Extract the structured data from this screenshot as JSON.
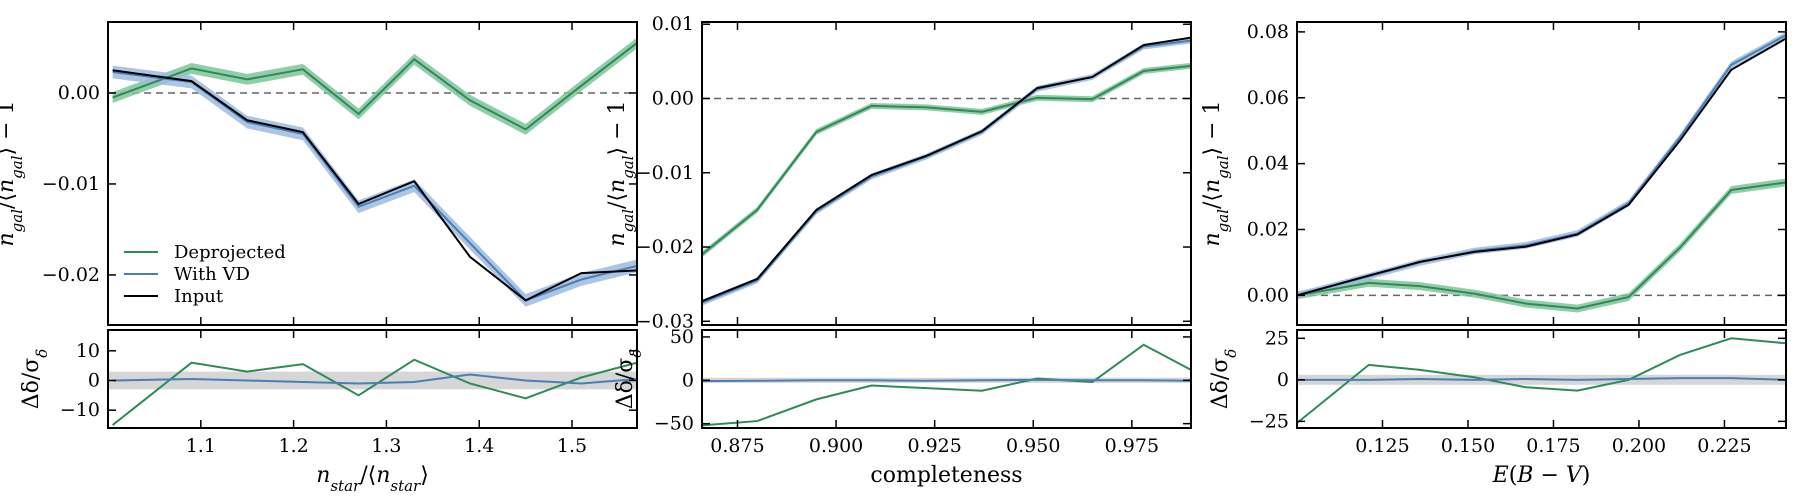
{
  "colors": {
    "deprojected": "#2e8b57",
    "with_vd": "#4a7fb5",
    "input": "#000000",
    "deprojected_band": "#7fc49a",
    "with_vd_band": "#9dbbe0",
    "residual_band": "#cccccc",
    "zero_line": "#666666"
  },
  "legend": [
    "Deprojected",
    "With VD",
    "Input"
  ],
  "chart_data": [
    {
      "type": "line",
      "xlabel": "n_star / ⟨n_star⟩",
      "ylabel": "n_gal / ⟨n_gal⟩ − 1",
      "xlim": [
        1.0,
        1.57
      ],
      "ylim": [
        -0.0255,
        0.0078
      ],
      "xticks": [
        1.1,
        1.2,
        1.3,
        1.4,
        1.5
      ],
      "xtick_labels": [
        "1.1",
        "1.2",
        "1.3",
        "1.4",
        "1.5"
      ],
      "yticks": [
        -0.02,
        -0.01,
        0.0
      ],
      "ytick_labels": [
        "−0.02",
        "−0.01",
        "0.00"
      ],
      "x": [
        1.005,
        1.09,
        1.15,
        1.21,
        1.27,
        1.33,
        1.39,
        1.45,
        1.51,
        1.57
      ],
      "series": [
        {
          "name": "Deprojected",
          "values": [
            -0.0005,
            0.0027,
            0.0015,
            0.0026,
            -0.0023,
            0.0037,
            -0.0008,
            -0.004,
            0.0008,
            0.0055
          ],
          "band": 0.0006
        },
        {
          "name": "With VD",
          "values": [
            0.0023,
            0.0012,
            -0.0032,
            -0.0045,
            -0.0125,
            -0.0102,
            -0.0165,
            -0.0228,
            -0.0205,
            -0.019
          ],
          "band": 0.0007
        },
        {
          "name": "Input",
          "values": [
            0.0025,
            0.0013,
            -0.003,
            -0.0043,
            -0.0122,
            -0.0097,
            -0.018,
            -0.0228,
            -0.0198,
            -0.0195
          ]
        }
      ],
      "residual": {
        "ylabel": "Δδ / σ_δ",
        "ylim": [
          -16,
          17
        ],
        "yticks": [
          -10,
          0,
          10
        ],
        "ytick_labels": [
          "−10",
          "0",
          "10"
        ],
        "band": 3,
        "series": [
          {
            "name": "Deprojected",
            "values": [
              -15,
              6,
              3,
              5.5,
              -5,
              7,
              -1,
              -6,
              1,
              6
            ]
          },
          {
            "name": "With VD",
            "values": [
              0,
              0.5,
              0,
              -0.5,
              -1,
              -0.5,
              2,
              0,
              -1,
              0.5
            ]
          }
        ]
      }
    },
    {
      "type": "line",
      "xlabel": "completeness",
      "ylabel": "n_gal / ⟨n_gal⟩ − 1",
      "xlim": [
        0.866,
        0.99
      ],
      "ylim": [
        -0.0305,
        0.0103
      ],
      "xticks": [
        0.875,
        0.9,
        0.925,
        0.95,
        0.975
      ],
      "xtick_labels": [
        "0.875",
        "0.900",
        "0.925",
        "0.950",
        "0.975"
      ],
      "yticks": [
        -0.03,
        -0.02,
        -0.01,
        0.0,
        0.01
      ],
      "ytick_labels": [
        "−0.03",
        "−0.02",
        "−0.01",
        "0.00",
        "0.01"
      ],
      "x": [
        0.866,
        0.88,
        0.895,
        0.909,
        0.923,
        0.937,
        0.951,
        0.965,
        0.978,
        0.99
      ],
      "series": [
        {
          "name": "Deprojected",
          "values": [
            -0.021,
            -0.015,
            -0.0045,
            -0.001,
            -0.0012,
            -0.0018,
            0.0001,
            -0.0001,
            0.0037,
            0.0044
          ],
          "band": 0.0004
        },
        {
          "name": "With VD",
          "values": [
            -0.0275,
            -0.0245,
            -0.0152,
            -0.0105,
            -0.0078,
            -0.0045,
            0.0013,
            0.0029,
            0.007,
            0.0078
          ],
          "band": 0.0004
        },
        {
          "name": "Input",
          "values": [
            -0.0273,
            -0.0243,
            -0.015,
            -0.0103,
            -0.0077,
            -0.0044,
            0.0014,
            0.0029,
            0.0072,
            0.0082
          ]
        }
      ],
      "residual": {
        "ylabel": "Δδ / σ_δ",
        "ylim": [
          -55,
          58
        ],
        "yticks": [
          -50,
          0,
          50
        ],
        "ytick_labels": [
          "−50",
          "0",
          "50"
        ],
        "band": 3,
        "series": [
          {
            "name": "Deprojected",
            "values": [
              -52,
              -47,
              -22,
              -6,
              -9,
              -12,
              2,
              -2,
              41,
              12
            ]
          },
          {
            "name": "With VD",
            "values": [
              -1,
              -0.5,
              0,
              0,
              -0.5,
              0,
              0.5,
              0,
              0,
              -0.5
            ]
          }
        ]
      }
    },
    {
      "type": "line",
      "xlabel": "E(B − V)",
      "ylabel": "n_gal / ⟨n_gal⟩ − 1",
      "xlim": [
        0.1,
        0.243
      ],
      "ylim": [
        -0.009,
        0.083
      ],
      "xticks": [
        0.125,
        0.15,
        0.175,
        0.2,
        0.225
      ],
      "xtick_labels": [
        "0.125",
        "0.150",
        "0.175",
        "0.200",
        "0.225"
      ],
      "yticks": [
        0.0,
        0.02,
        0.04,
        0.06,
        0.08
      ],
      "ytick_labels": [
        "0.00",
        "0.02",
        "0.04",
        "0.06",
        "0.08"
      ],
      "x": [
        0.1,
        0.121,
        0.136,
        0.152,
        0.167,
        0.182,
        0.197,
        0.212,
        0.227,
        0.243
      ],
      "series": [
        {
          "name": "Deprojected",
          "values": [
            0.0,
            0.0038,
            0.0028,
            0.0005,
            -0.0025,
            -0.004,
            -0.0005,
            0.0145,
            0.032,
            0.0343
          ],
          "band": 0.0012
        },
        {
          "name": "With VD",
          "values": [
            0.0,
            0.0058,
            0.01,
            0.0135,
            0.0152,
            0.0188,
            0.028,
            0.048,
            0.07,
            0.079
          ],
          "band": 0.001
        },
        {
          "name": "Input",
          "values": [
            0.0,
            0.006,
            0.0102,
            0.0132,
            0.0148,
            0.0185,
            0.0275,
            0.047,
            0.0685,
            0.078
          ]
        }
      ],
      "residual": {
        "ylabel": "Δδ / σ_δ",
        "ylim": [
          -29,
          30
        ],
        "yticks": [
          -25,
          0,
          25
        ],
        "ytick_labels": [
          "−25",
          "0",
          "25"
        ],
        "band": 3,
        "series": [
          {
            "name": "Deprojected",
            "values": [
              -26,
              9,
              6,
              1.5,
              -4.5,
              -6.5,
              0,
              15,
              25,
              22
            ]
          },
          {
            "name": "With VD",
            "values": [
              0,
              0,
              0.5,
              0,
              0.5,
              0,
              0.5,
              1,
              1,
              0
            ]
          }
        ]
      }
    }
  ]
}
